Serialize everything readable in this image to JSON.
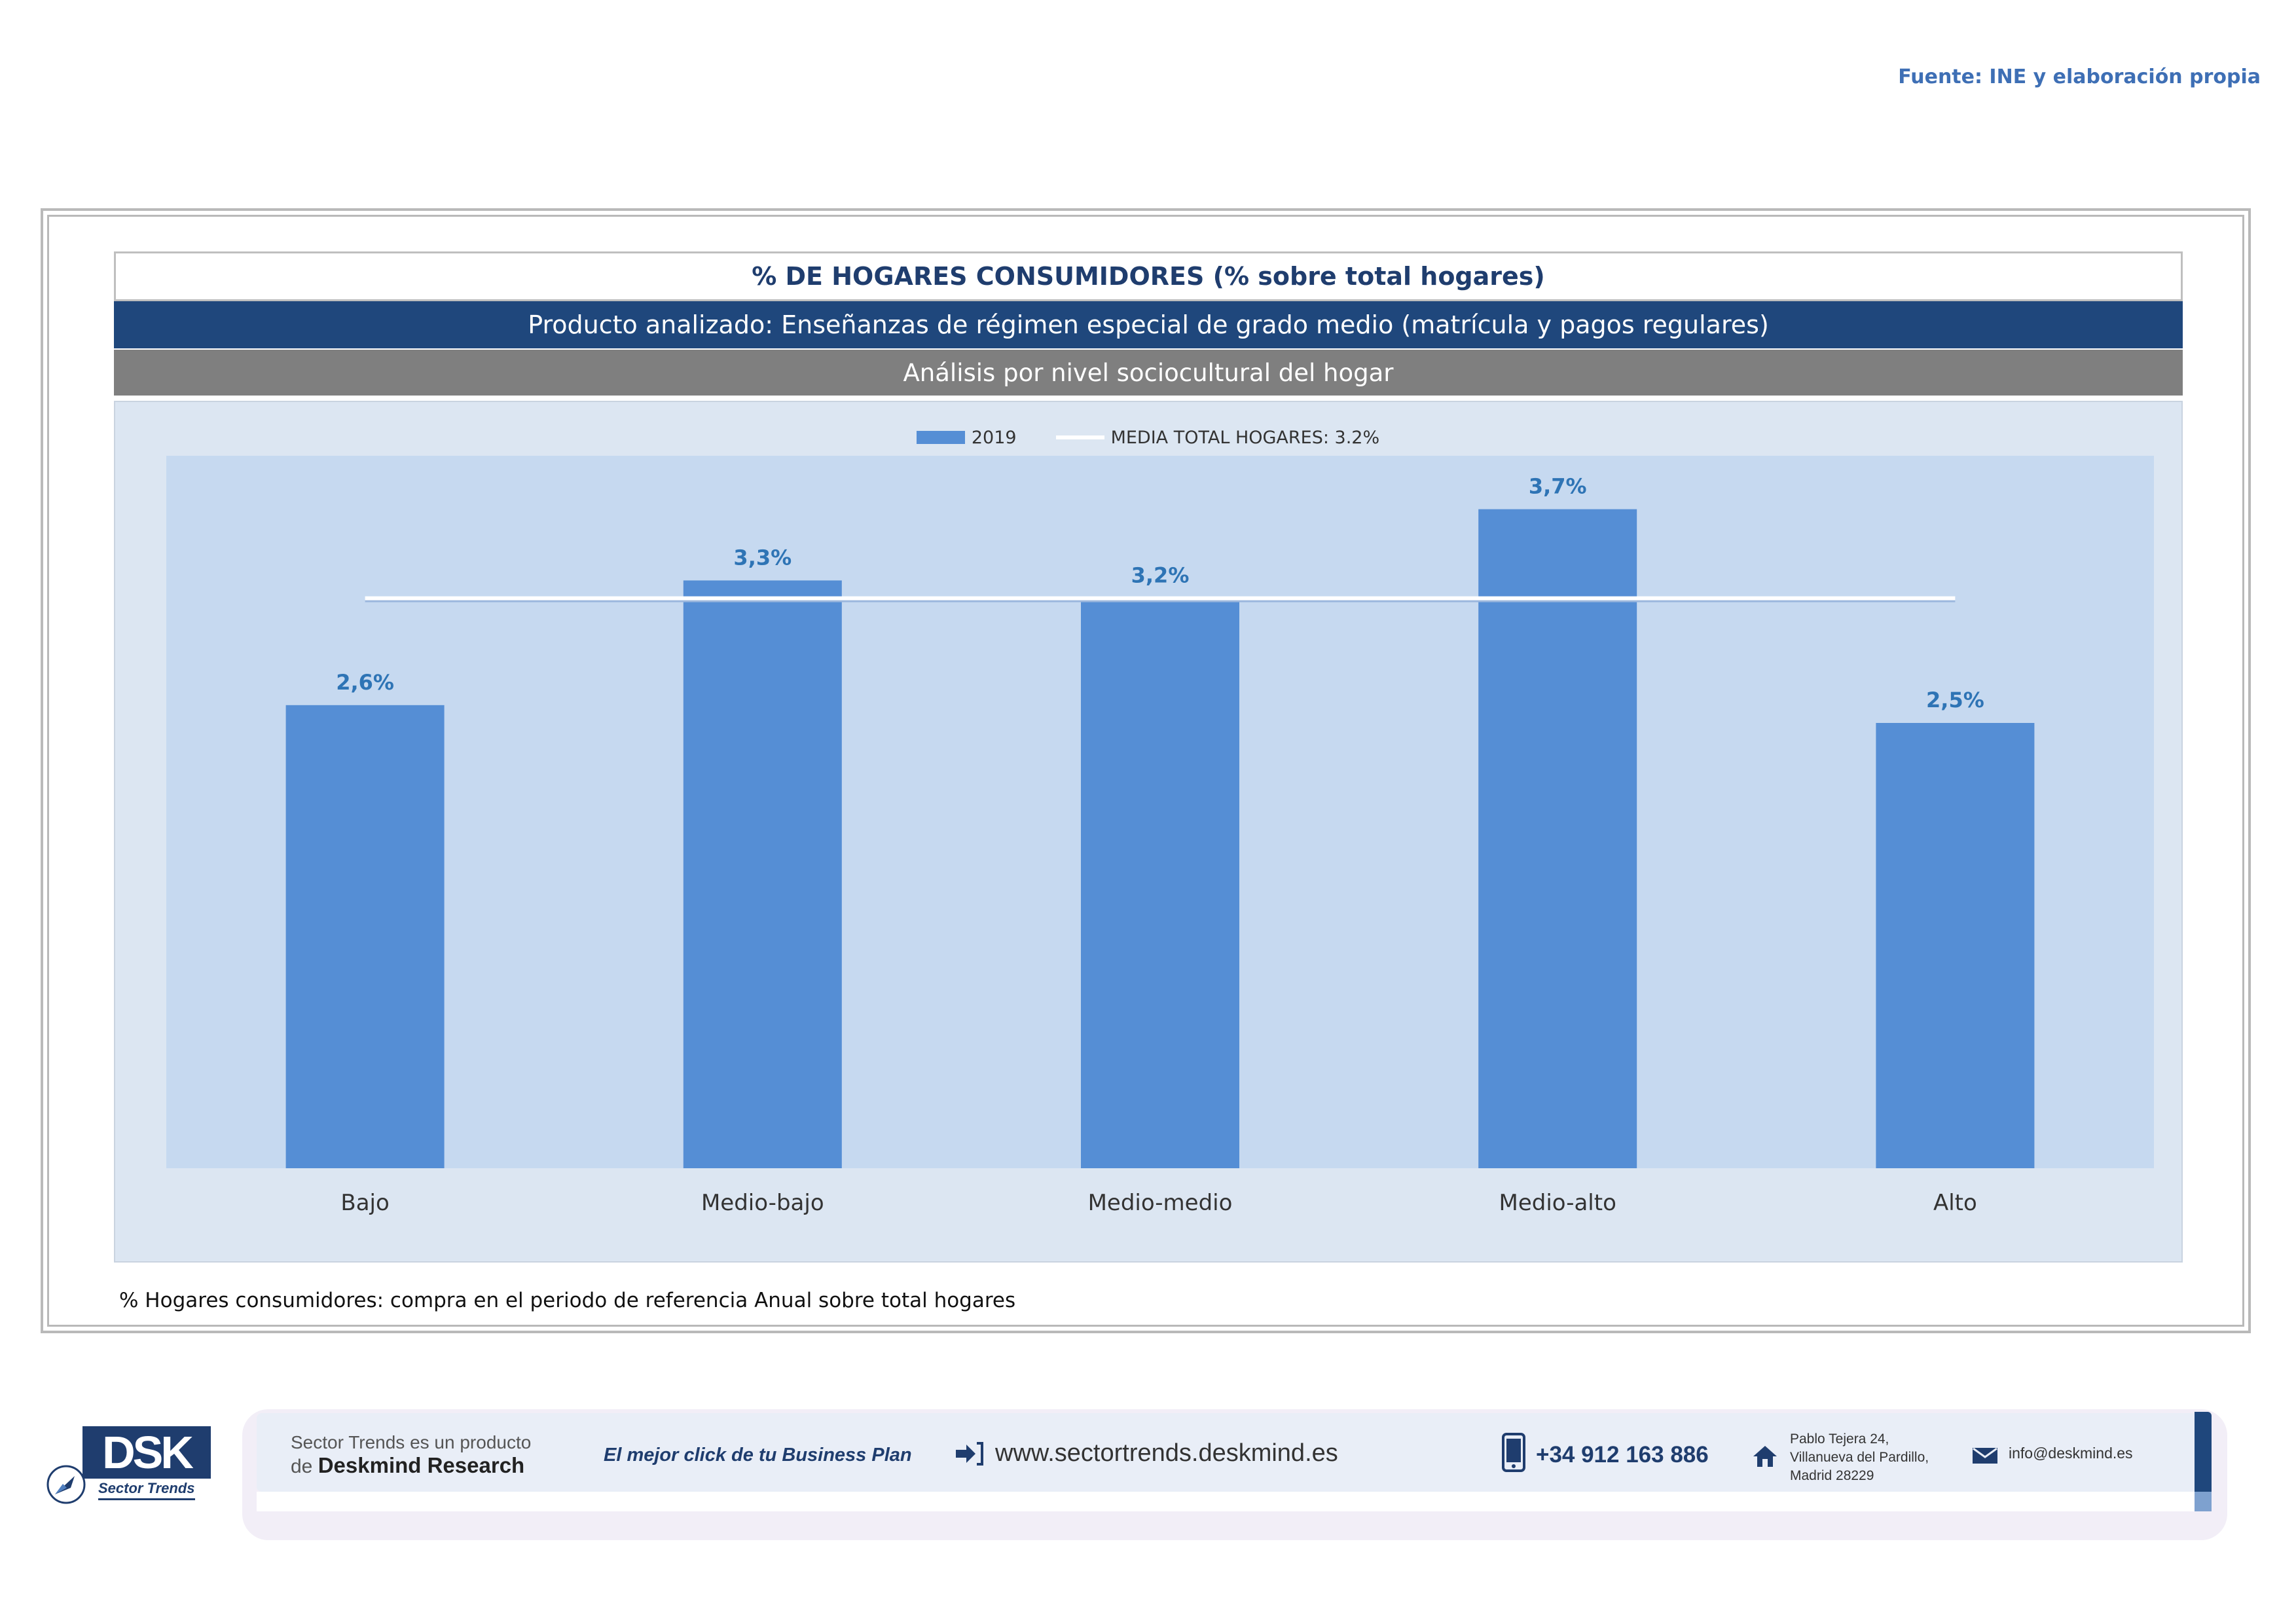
{
  "source": "Fuente: INE y elaboración propia",
  "header": {
    "title": "% DE HOGARES CONSUMIDORES (% sobre total hogares)",
    "product": "Producto analizado: Enseñanzas de régimen especial de grado medio  (matrícula y pagos regulares)",
    "analysis": "Análisis por nivel sociocultural del hogar"
  },
  "legend": {
    "bar_label": "2019",
    "line_label": "MEDIA TOTAL  HOGARES:  3.2%"
  },
  "chart_data": {
    "type": "bar",
    "title": "% DE HOGARES CONSUMIDORES (% sobre total hogares)",
    "categories": [
      "Bajo",
      "Medio-bajo",
      "Medio-medio",
      "Medio-alto",
      "Alto"
    ],
    "series": [
      {
        "name": "2019",
        "values": [
          2.6,
          3.3,
          3.2,
          3.7,
          2.5
        ]
      }
    ],
    "data_labels": [
      "2,6%",
      "3,3%",
      "3,2%",
      "3,7%",
      "2,5%"
    ],
    "reference_line": {
      "name": "MEDIA TOTAL  HOGARES:  3.2%",
      "value": 3.2
    },
    "ylim": [
      0,
      4.0
    ],
    "xlabel": "",
    "ylabel": "",
    "bar_color": "#558ed5",
    "label_color": "#2e74b5",
    "line_color": "#ffffff"
  },
  "note": "% Hogares consumidores: compra en el periodo de referencia Anual sobre total hogares",
  "footer": {
    "logo_text": "DSK",
    "logo_sub": "Sector Trends",
    "line1": "Sector Trends es un producto",
    "line2_prefix": "de",
    "line2_brand": "Deskmind Research",
    "slogan": "El mejor click de tu Business Plan",
    "website": "www.sectortrends.deskmind.es",
    "phone": "+34 912 163 886",
    "address_1": "Pablo Tejera 24,",
    "address_2": "Villanueva del Pardillo,",
    "address_3": "Madrid 28229",
    "email": "info@deskmind.es"
  }
}
